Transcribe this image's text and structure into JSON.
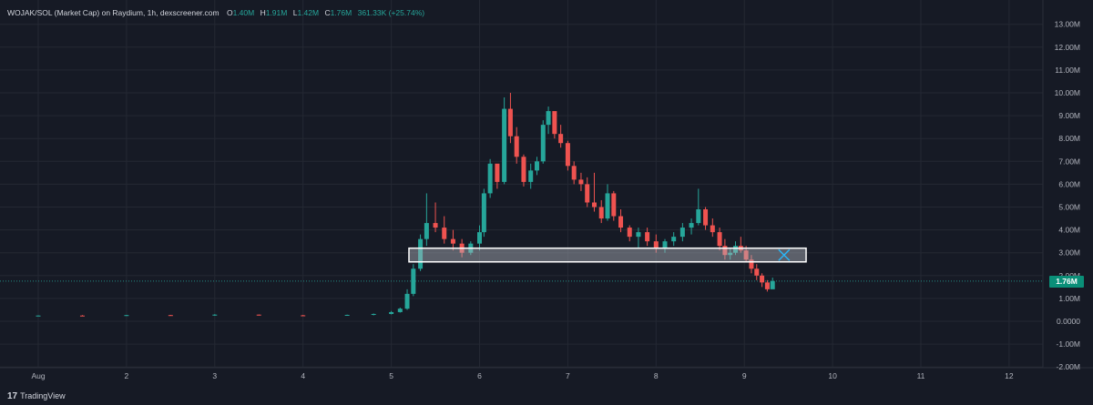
{
  "legend": {
    "symbol": "WOJAK/SOL (Market Cap) on Raydium, 1h, dexscreener.com",
    "open_label": "O",
    "open": "1.40M",
    "high_label": "H",
    "high": "1.91M",
    "low_label": "L",
    "low": "1.42M",
    "close_label": "C",
    "close": "1.76M",
    "change": "361.33K (+25.74%)"
  },
  "price_tag": "1.76M",
  "footer": {
    "brand": "TradingView",
    "logo_glyph": "17"
  },
  "colors": {
    "background": "#161a25",
    "up": "#26a69a",
    "down": "#ef5350",
    "box_stroke": "#ffffff",
    "box_fill": "#b2b5be",
    "x_mark": "#29b6f6",
    "price_tag": "#0a8f78"
  },
  "icons": {
    "target_marker": "x-icon",
    "brand": "tradingview-logo-icon"
  },
  "chart_data": {
    "type": "candlestick",
    "title": "",
    "xlabel": "",
    "ylabel": "",
    "ylim": [
      -2000000,
      13600000
    ],
    "grid": true,
    "y_tick_labels": [
      "13.00M",
      "12.00M",
      "11.00M",
      "10.00M",
      "9.00M",
      "8.00M",
      "7.00M",
      "6.00M",
      "5.00M",
      "4.00M",
      "3.00M",
      "2.00M",
      "1.00M",
      "0.0000",
      "-1.00M",
      "-2.00M"
    ],
    "y_tick_values": [
      13000000,
      12000000,
      11000000,
      10000000,
      9000000,
      8000000,
      7000000,
      6000000,
      5000000,
      4000000,
      3000000,
      2000000,
      1000000,
      0,
      -1000000,
      -2000000
    ],
    "x_tick_labels": [
      "Aug",
      "2",
      "3",
      "4",
      "5",
      "6",
      "7",
      "8",
      "9",
      "10",
      "11",
      "12"
    ],
    "x_tick_values": [
      1,
      2,
      3,
      4,
      5,
      6,
      7,
      8,
      9,
      10,
      11,
      12
    ],
    "x_unit": "day of August",
    "current_price": 1760000,
    "series": [
      {
        "values": [
          [
            1.0,
            0.24,
            0.26,
            0.22,
            0.25
          ],
          [
            1.5,
            0.25,
            0.27,
            0.23,
            0.24
          ],
          [
            2.0,
            0.24,
            0.28,
            0.23,
            0.27
          ],
          [
            2.5,
            0.27,
            0.28,
            0.24,
            0.25
          ],
          [
            3.0,
            0.25,
            0.31,
            0.24,
            0.29
          ],
          [
            3.5,
            0.29,
            0.3,
            0.25,
            0.26
          ],
          [
            4.0,
            0.26,
            0.28,
            0.23,
            0.25
          ],
          [
            4.5,
            0.25,
            0.29,
            0.24,
            0.28
          ],
          [
            4.8,
            0.28,
            0.34,
            0.26,
            0.32
          ],
          [
            5.0,
            0.32,
            0.45,
            0.3,
            0.4
          ],
          [
            5.1,
            0.4,
            0.6,
            0.38,
            0.55
          ],
          [
            5.18,
            0.55,
            1.4,
            0.5,
            1.2
          ],
          [
            5.25,
            1.2,
            2.5,
            1.1,
            2.3
          ],
          [
            5.33,
            2.3,
            3.8,
            2.2,
            3.6
          ],
          [
            5.4,
            3.6,
            5.6,
            3.3,
            4.3
          ],
          [
            5.5,
            4.3,
            5.2,
            3.9,
            4.1
          ],
          [
            5.6,
            4.1,
            4.6,
            3.4,
            3.6
          ],
          [
            5.7,
            3.6,
            4.0,
            3.1,
            3.4
          ],
          [
            5.8,
            3.4,
            3.6,
            2.8,
            3.0
          ],
          [
            5.9,
            3.0,
            3.5,
            2.9,
            3.4
          ],
          [
            6.0,
            3.4,
            4.2,
            3.1,
            3.9
          ],
          [
            6.05,
            3.9,
            5.8,
            3.7,
            5.6
          ],
          [
            6.12,
            5.6,
            7.1,
            5.4,
            6.9
          ],
          [
            6.2,
            6.9,
            6.8,
            5.8,
            6.1
          ],
          [
            6.28,
            6.1,
            9.8,
            6.0,
            9.3
          ],
          [
            6.35,
            9.3,
            10.0,
            7.8,
            8.1
          ],
          [
            6.42,
            8.1,
            8.5,
            6.9,
            7.2
          ],
          [
            6.5,
            7.2,
            7.3,
            5.9,
            6.1
          ],
          [
            6.58,
            6.1,
            6.9,
            5.8,
            6.6
          ],
          [
            6.65,
            6.6,
            7.2,
            6.4,
            7.0
          ],
          [
            6.72,
            7.0,
            8.8,
            6.9,
            8.6
          ],
          [
            6.78,
            8.6,
            9.4,
            8.2,
            9.2
          ],
          [
            6.85,
            9.2,
            9.0,
            8.0,
            8.2
          ],
          [
            6.92,
            8.2,
            8.6,
            7.6,
            7.8
          ],
          [
            7.0,
            7.8,
            7.9,
            6.6,
            6.8
          ],
          [
            7.07,
            6.8,
            7.0,
            6.0,
            6.2
          ],
          [
            7.15,
            6.2,
            6.5,
            5.7,
            6.0
          ],
          [
            7.22,
            6.0,
            6.3,
            5.0,
            5.2
          ],
          [
            7.3,
            5.2,
            6.5,
            4.8,
            5.0
          ],
          [
            7.38,
            5.0,
            5.3,
            4.3,
            4.5
          ],
          [
            7.45,
            4.5,
            6.0,
            4.4,
            5.6
          ],
          [
            7.52,
            5.6,
            5.7,
            4.4,
            4.6
          ],
          [
            7.6,
            4.6,
            4.9,
            3.9,
            4.1
          ],
          [
            7.7,
            4.1,
            4.2,
            3.5,
            3.7
          ],
          [
            7.8,
            3.7,
            4.1,
            3.2,
            3.9
          ],
          [
            7.9,
            3.9,
            4.1,
            3.3,
            3.5
          ],
          [
            8.0,
            3.5,
            3.8,
            3.0,
            3.2
          ],
          [
            8.1,
            3.2,
            3.6,
            3.0,
            3.5
          ],
          [
            8.2,
            3.5,
            3.9,
            3.3,
            3.7
          ],
          [
            8.3,
            3.7,
            4.3,
            3.5,
            4.1
          ],
          [
            8.4,
            4.1,
            4.5,
            3.8,
            4.3
          ],
          [
            8.48,
            4.3,
            5.8,
            4.2,
            4.9
          ],
          [
            8.56,
            4.9,
            5.0,
            4.0,
            4.2
          ],
          [
            8.64,
            4.2,
            4.5,
            3.7,
            3.9
          ],
          [
            8.72,
            3.9,
            4.1,
            3.1,
            3.3
          ],
          [
            8.78,
            3.3,
            3.6,
            2.7,
            2.9
          ],
          [
            8.84,
            2.9,
            3.2,
            2.7,
            3.0
          ],
          [
            8.9,
            3.0,
            3.5,
            2.9,
            3.3
          ],
          [
            8.96,
            3.3,
            3.7,
            3.0,
            3.1
          ],
          [
            9.02,
            3.1,
            3.3,
            2.6,
            2.7
          ],
          [
            9.08,
            2.7,
            2.9,
            2.1,
            2.3
          ],
          [
            9.14,
            2.3,
            2.5,
            1.8,
            2.0
          ],
          [
            9.2,
            2.0,
            2.1,
            1.5,
            1.7
          ],
          [
            9.26,
            1.7,
            1.8,
            1.3,
            1.4
          ],
          [
            9.32,
            1.4,
            1.91,
            1.42,
            1.76
          ]
        ]
      }
    ],
    "annotation_box": {
      "label": "",
      "from_day": 5.2,
      "to_day": 9.7,
      "low": 2600000,
      "high": 3200000
    },
    "target_mark": {
      "day": 9.45,
      "value": 2900000
    }
  }
}
